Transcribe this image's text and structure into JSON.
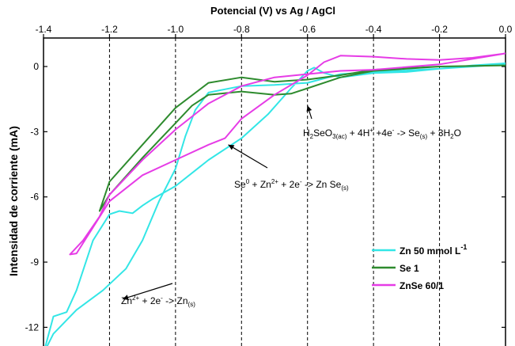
{
  "chart_data": {
    "type": "line",
    "title": "",
    "xlabel": "Potencial (V)  vs Ag / AgCl",
    "ylabel": "Intensidad de corriente (mA)",
    "xlim": [
      -1.4,
      0.0
    ],
    "ylim": [
      -13.0,
      1.6
    ],
    "x_axis_position": "top",
    "x_ticks": [
      -1.4,
      -1.2,
      -1.0,
      -0.8,
      -0.6,
      -0.4,
      -0.2,
      0.0
    ],
    "x_tick_labels": [
      "-1.4",
      "-1.2",
      "-1.0",
      "-0.8",
      "-0.6",
      "-0.4",
      "-0.2",
      "0.0"
    ],
    "y_ticks": [
      0,
      -3,
      -6,
      -9,
      -12
    ],
    "y_tick_labels": [
      "0",
      "-3",
      "-6",
      "-9",
      "-12"
    ],
    "grid": "vertical dashed lines at x ticks",
    "legend_position": "bottom-right",
    "series": [
      {
        "name": "Zn 50 mmol L-1",
        "color": "#33e6e6",
        "points": [
          [
            0.0,
            0.15
          ],
          [
            -0.1,
            0.05
          ],
          [
            -0.2,
            -0.1
          ],
          [
            -0.3,
            -0.25
          ],
          [
            -0.4,
            -0.3
          ],
          [
            -0.5,
            -0.5
          ],
          [
            -0.55,
            -0.3
          ],
          [
            -0.58,
            -0.05
          ],
          [
            -0.6,
            -0.2
          ],
          [
            -0.65,
            -1.0
          ],
          [
            -0.72,
            -2.2
          ],
          [
            -0.8,
            -3.3
          ],
          [
            -0.9,
            -4.3
          ],
          [
            -1.0,
            -5.5
          ],
          [
            -1.07,
            -6.1
          ],
          [
            -1.1,
            -6.4
          ],
          [
            -1.13,
            -6.75
          ],
          [
            -1.17,
            -6.65
          ],
          [
            -1.2,
            -6.8
          ],
          [
            -1.25,
            -8.0
          ],
          [
            -1.3,
            -10.3
          ],
          [
            -1.33,
            -11.3
          ],
          [
            -1.37,
            -11.5
          ],
          [
            -1.4,
            -13.2
          ],
          [
            -1.37,
            -12.3
          ],
          [
            -1.3,
            -11.2
          ],
          [
            -1.22,
            -10.3
          ],
          [
            -1.15,
            -9.3
          ],
          [
            -1.1,
            -8.0
          ],
          [
            -1.05,
            -6.2
          ],
          [
            -1.0,
            -4.7
          ],
          [
            -0.97,
            -3.2
          ],
          [
            -0.94,
            -2.0
          ],
          [
            -0.9,
            -1.2
          ],
          [
            -0.8,
            -0.9
          ],
          [
            -0.7,
            -0.85
          ],
          [
            -0.6,
            -0.75
          ],
          [
            -0.5,
            -0.35
          ],
          [
            -0.4,
            -0.25
          ],
          [
            -0.2,
            -0.1
          ],
          [
            0.0,
            0.1
          ]
        ]
      },
      {
        "name": "Se 1",
        "color": "#2e8b2e",
        "points": [
          [
            0.0,
            0.05
          ],
          [
            -0.2,
            0.0
          ],
          [
            -0.4,
            -0.15
          ],
          [
            -0.5,
            -0.4
          ],
          [
            -0.6,
            -0.6
          ],
          [
            -0.7,
            -0.7
          ],
          [
            -0.8,
            -0.5
          ],
          [
            -0.9,
            -0.75
          ],
          [
            -1.0,
            -1.9
          ],
          [
            -1.1,
            -3.6
          ],
          [
            -1.2,
            -5.3
          ],
          [
            -1.23,
            -6.65
          ],
          [
            -1.2,
            -5.9
          ],
          [
            -1.1,
            -4.2
          ],
          [
            -1.0,
            -2.6
          ],
          [
            -0.95,
            -1.8
          ],
          [
            -0.9,
            -1.3
          ],
          [
            -0.8,
            -1.15
          ],
          [
            -0.7,
            -1.3
          ],
          [
            -0.65,
            -1.25
          ],
          [
            -0.6,
            -1.0
          ],
          [
            -0.5,
            -0.5
          ],
          [
            -0.4,
            -0.2
          ],
          [
            -0.2,
            0.0
          ],
          [
            0.0,
            0.05
          ]
        ]
      },
      {
        "name": "ZnSe 60/1",
        "color": "#e63ce6",
        "points": [
          [
            0.0,
            0.6
          ],
          [
            -0.1,
            0.4
          ],
          [
            -0.2,
            0.3
          ],
          [
            -0.3,
            0.35
          ],
          [
            -0.4,
            0.45
          ],
          [
            -0.5,
            0.5
          ],
          [
            -0.55,
            0.2
          ],
          [
            -0.6,
            -0.4
          ],
          [
            -0.7,
            -1.3
          ],
          [
            -0.8,
            -2.4
          ],
          [
            -0.85,
            -3.3
          ],
          [
            -0.9,
            -3.6
          ],
          [
            -1.0,
            -4.3
          ],
          [
            -1.1,
            -5.0
          ],
          [
            -1.2,
            -6.2
          ],
          [
            -1.25,
            -7.4
          ],
          [
            -1.3,
            -8.6
          ],
          [
            -1.32,
            -8.65
          ],
          [
            -1.28,
            -8.0
          ],
          [
            -1.23,
            -6.9
          ],
          [
            -1.2,
            -5.9
          ],
          [
            -1.1,
            -4.3
          ],
          [
            -1.0,
            -2.9
          ],
          [
            -0.9,
            -1.7
          ],
          [
            -0.8,
            -0.9
          ],
          [
            -0.7,
            -0.5
          ],
          [
            -0.6,
            -0.35
          ],
          [
            -0.5,
            -0.2
          ],
          [
            -0.4,
            -0.15
          ],
          [
            -0.2,
            0.1
          ],
          [
            0.0,
            0.6
          ]
        ]
      }
    ],
    "annotations": [
      {
        "key": "a1",
        "parts": [
          [
            "H",
            ""
          ],
          [
            "2",
            "sub"
          ],
          [
            "SeO",
            ""
          ],
          [
            "3(ac)",
            "sub"
          ],
          [
            " + 4H",
            ""
          ],
          [
            "+",
            "sup"
          ],
          [
            " +4e",
            ""
          ],
          [
            "-",
            "sup"
          ],
          [
            " -> Se",
            ""
          ],
          [
            "(s)",
            "sub"
          ],
          [
            " + 3H",
            ""
          ],
          [
            "2",
            "sub"
          ],
          [
            "O",
            ""
          ]
        ],
        "arrow_to": [
          -0.6,
          -1.8
        ]
      },
      {
        "key": "a2",
        "parts": [
          [
            "Se",
            ""
          ],
          [
            "0",
            "sup"
          ],
          [
            " + Zn",
            ""
          ],
          [
            "2+",
            "sup"
          ],
          [
            " + 2e",
            ""
          ],
          [
            "-",
            "sup"
          ],
          [
            " -> Zn Se",
            ""
          ],
          [
            "(s)",
            "sub"
          ]
        ],
        "arrow_to": [
          -0.84,
          -3.6
        ]
      },
      {
        "key": "a3",
        "parts": [
          [
            "Zn",
            ""
          ],
          [
            "2+",
            "sup"
          ],
          [
            " + 2e",
            ""
          ],
          [
            "-",
            "sup"
          ],
          [
            " -> Zn",
            ""
          ],
          [
            "(s)",
            "sub"
          ]
        ],
        "arrow_to": [
          -1.16,
          -10.7
        ]
      }
    ],
    "legend": [
      {
        "label": "Zn 50 mmol L",
        "sup": "-1",
        "color": "#33e6e6"
      },
      {
        "label": "Se 1",
        "sup": "",
        "color": "#2e8b2e"
      },
      {
        "label": "ZnSe 60/1",
        "sup": "",
        "color": "#e63ce6"
      }
    ]
  }
}
